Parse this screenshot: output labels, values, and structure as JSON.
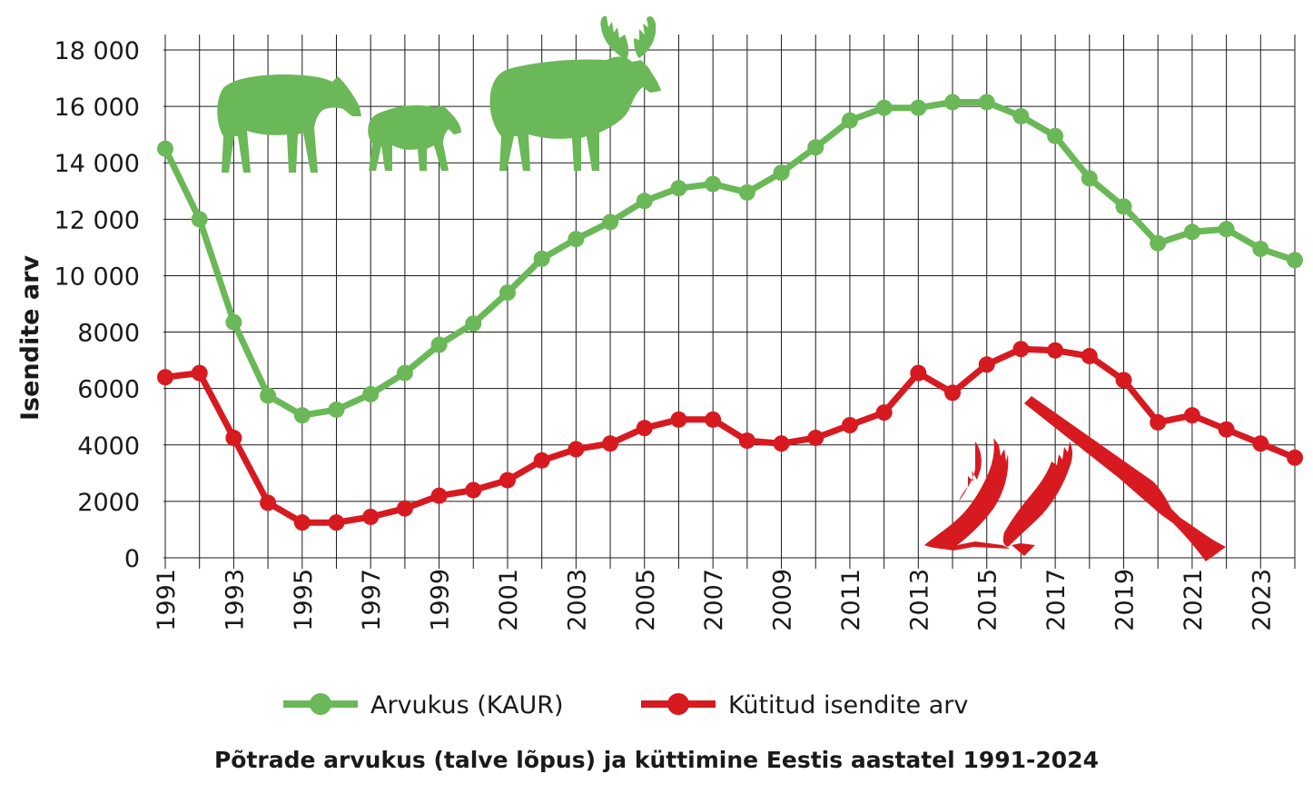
{
  "chart_data": {
    "type": "line",
    "title": "Põtrade arvukus (talve lõpus) ja küttimine Eestis aastatel 1991-2024",
    "ylabel": "Isendite arv",
    "xlabel": "",
    "ylim": [
      0,
      18000
    ],
    "yticks": [
      0,
      2000,
      4000,
      6000,
      8000,
      10000,
      12000,
      14000,
      16000,
      18000
    ],
    "ytick_labels": [
      "0",
      "2000",
      "4000",
      "6000",
      "8000",
      "10 000",
      "12 000",
      "14 000",
      "16 000",
      "18 000"
    ],
    "x": [
      1991,
      1992,
      1993,
      1994,
      1995,
      1996,
      1997,
      1998,
      1999,
      2000,
      2001,
      2002,
      2003,
      2004,
      2005,
      2006,
      2007,
      2008,
      2009,
      2010,
      2011,
      2012,
      2013,
      2014,
      2015,
      2016,
      2017,
      2018,
      2019,
      2020,
      2021,
      2022,
      2023,
      2024
    ],
    "xtick_labels": [
      "1991",
      "1993",
      "1995",
      "1997",
      "1999",
      "2001",
      "2003",
      "2005",
      "2007",
      "2009",
      "2011",
      "2013",
      "2015",
      "2017",
      "2019",
      "2021",
      "2023"
    ],
    "xtick_values": [
      1991,
      1993,
      1995,
      1997,
      1999,
      2001,
      2003,
      2005,
      2007,
      2009,
      2011,
      2013,
      2015,
      2017,
      2019,
      2021,
      2023
    ],
    "grid": true,
    "legend_position": "bottom",
    "series": [
      {
        "name": "Arvukus (KAUR)",
        "color": "#6ab857",
        "values": [
          14500,
          12000,
          8350,
          5750,
          5050,
          5250,
          5800,
          6550,
          7550,
          8300,
          9400,
          10600,
          11300,
          11900,
          12650,
          13100,
          13250,
          12950,
          13650,
          14550,
          15500,
          15950,
          15950,
          16150,
          16150,
          15650,
          14950,
          13450,
          12450,
          11150,
          11550,
          11650,
          10950,
          10550
        ]
      },
      {
        "name": "Kütitud isendite arv",
        "color": "#d71920",
        "values": [
          6400,
          6550,
          4250,
          1950,
          1250,
          1250,
          1450,
          1750,
          2200,
          2400,
          2750,
          3450,
          3850,
          4050,
          4600,
          4900,
          4900,
          4150,
          4050,
          4250,
          4700,
          5150,
          6550,
          5850,
          6850,
          7400,
          7350,
          7150,
          6300,
          4800,
          5050,
          4550,
          4050,
          3550
        ]
      }
    ]
  },
  "decorations": {
    "animals_icon": "moose-family-silhouette-icon",
    "animals_color": "#6ab857",
    "hunt_icon": "antlers-and-rifle-icon",
    "hunt_color": "#d71920"
  }
}
